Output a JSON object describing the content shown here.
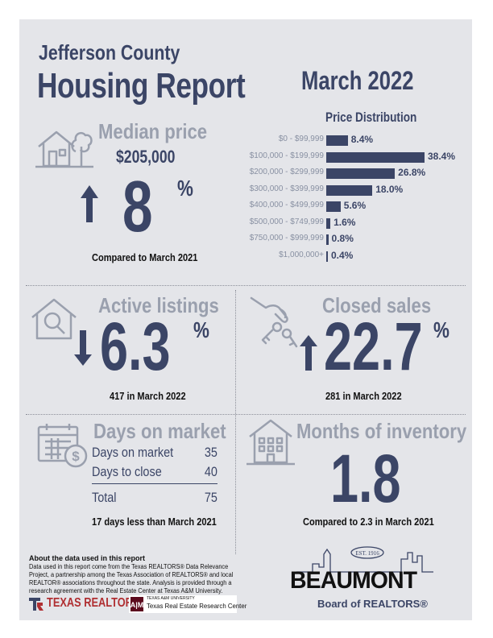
{
  "header": {
    "county": "Jefferson County",
    "report_title": "Housing Report",
    "month": "March 2022"
  },
  "median_price": {
    "title": "Median price",
    "value": "$205,000",
    "change": "8",
    "percent_sign": "%",
    "direction": "up",
    "caption": "Compared to March 2021"
  },
  "price_distribution": {
    "title": "Price Distribution",
    "chart_data": {
      "type": "bar",
      "orientation": "horizontal",
      "categories": [
        "$0 - $99,999",
        "$100,000 - $199,999",
        "$200,000 - $299,999",
        "$300,000 - $399,999",
        "$400,000 - $499,999",
        "$500,000 - $749,999",
        "$750,000 - $999,999",
        "$1,000,000+"
      ],
      "values": [
        8.4,
        38.4,
        26.8,
        18.0,
        5.6,
        1.6,
        0.8,
        0.4
      ],
      "value_labels": [
        "8.4%",
        "38.4%",
        "26.8%",
        "18.0%",
        "5.6%",
        "1.6%",
        "0.8%",
        "0.4%"
      ],
      "title": "Price Distribution"
    }
  },
  "active_listings": {
    "title": "Active listings",
    "change": "6.3",
    "percent_sign": "%",
    "direction": "down",
    "caption": "417 in March 2022"
  },
  "closed_sales": {
    "title": "Closed sales",
    "change": "22.7",
    "percent_sign": "%",
    "direction": "up",
    "caption": "281 in March 2022"
  },
  "days_on_market": {
    "title": "Days on market",
    "rows": [
      {
        "label": "Days on market",
        "value": "35"
      },
      {
        "label": "Days to close",
        "value": "40"
      },
      {
        "label": "Total",
        "value": "75"
      }
    ],
    "caption": "17 days less than March 2021"
  },
  "months_inventory": {
    "title": "Months of inventory",
    "value": "1.8",
    "caption": "Compared to 2.3 in March 2021"
  },
  "about": {
    "title": "About the data used in this report",
    "body": "Data used in this report come from the Texas REALTORS® Data Relevance Project, a partnership among the Texas Association of REALTORS® and local REALTOR® associations throughout the state. Analysis is provided through a research agreement with the Real Estate Center at Texas A&M University."
  },
  "logos": {
    "texas_realtors": "TEXAS REALTORS",
    "tamu_small": "TEXAS A&M UNIVERSITY",
    "tamu_center": "Texas Real Estate Research Center",
    "beaumont": "BEAUMONT",
    "beaumont_est": "EST. 1916",
    "beaumont_board": "Board of REALTORS®"
  },
  "colors": {
    "navy": "#3b4566",
    "gray_heading": "#9aa0ae",
    "panel": "#e4e5e9",
    "realtors_red": "#b02f32"
  }
}
